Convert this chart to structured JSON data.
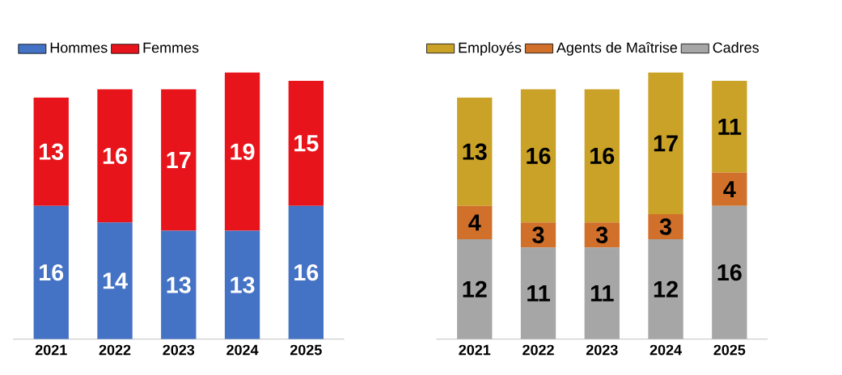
{
  "chart_data": [
    {
      "type": "bar",
      "stacked": true,
      "data_labels": true,
      "legend": "top left",
      "categories": [
        "2021",
        "2022",
        "2023",
        "2024",
        "2025"
      ],
      "series": [
        {
          "name": "Hommes",
          "color": "#4472c4",
          "values": [
            16,
            14,
            13,
            13,
            16
          ]
        },
        {
          "name": "Femmes",
          "color": "#e8141b",
          "values": [
            13,
            16,
            17,
            19,
            15
          ]
        }
      ]
    },
    {
      "type": "bar",
      "stacked": true,
      "data_labels": true,
      "legend": "top right",
      "categories": [
        "2021",
        "2022",
        "2023",
        "2024",
        "2025"
      ],
      "series": [
        {
          "name": "Cadres",
          "color": "#a6a6a6",
          "values": [
            12,
            11,
            11,
            12,
            16
          ]
        },
        {
          "name": "Agents de Maîtrise",
          "color": "#d0702a",
          "values": [
            4,
            3,
            3,
            3,
            4
          ]
        },
        {
          "name": "Employés",
          "color": "#c9a227",
          "values": [
            13,
            16,
            16,
            17,
            11
          ]
        }
      ]
    }
  ]
}
